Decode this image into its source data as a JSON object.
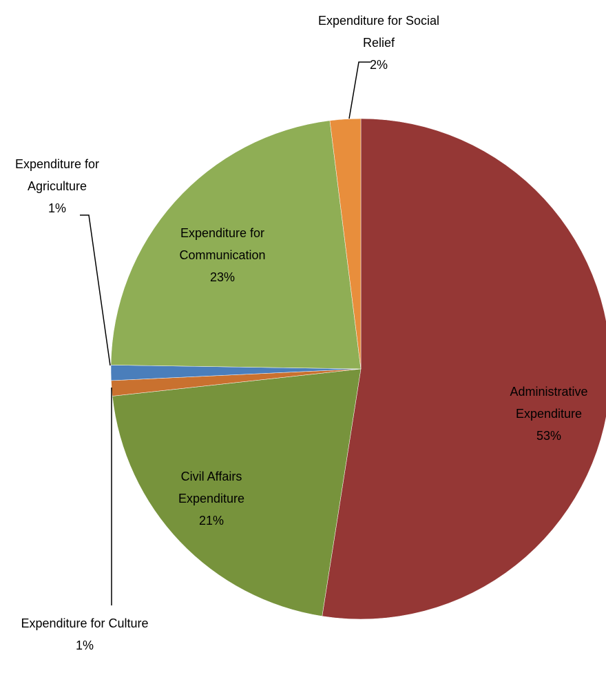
{
  "chart_data": {
    "type": "pie",
    "categories": [
      "Administrative Expenditure",
      "Civil Affairs Expenditure",
      "Expenditure for Culture",
      "Expenditure for Agriculture",
      "Expenditure for Communication",
      "Expenditure for Social Relief"
    ],
    "values": [
      53,
      21,
      1,
      1,
      23,
      2
    ],
    "value_labels": [
      "53%",
      "21%",
      "1%",
      "1%",
      "23%",
      "2%"
    ],
    "colors": [
      "#953735",
      "#77933c",
      "#c9712f",
      "#4a7ebb",
      "#8fae55",
      "#e88e3c"
    ]
  }
}
